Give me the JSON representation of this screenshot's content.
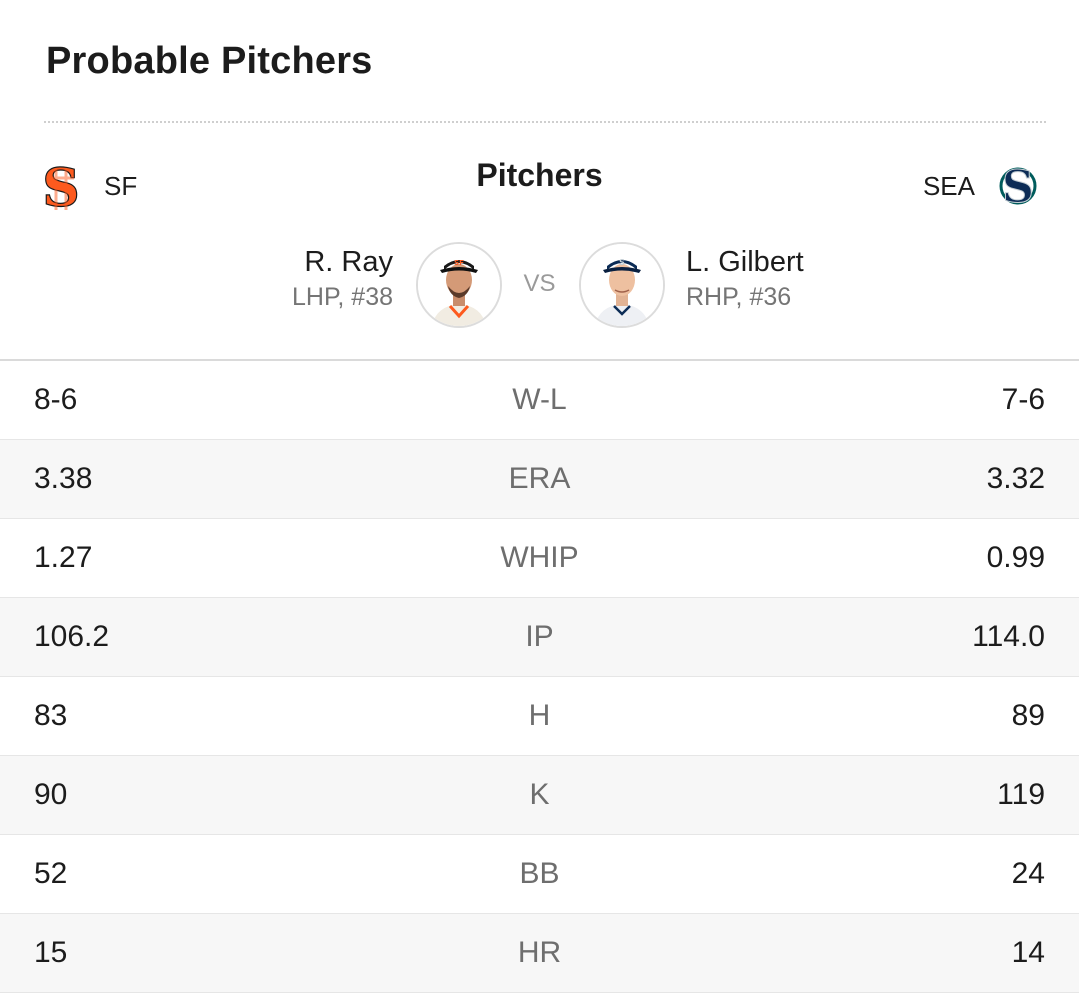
{
  "card": {
    "title": "Probable Pitchers"
  },
  "teams": {
    "left": {
      "abbr": "SF",
      "logo_icon": "sf-giants-logo",
      "color": "#FD5A1E"
    },
    "right": {
      "abbr": "SEA",
      "logo_icon": "seattle-mariners-logo",
      "color": "#005C5C"
    }
  },
  "pitchers": {
    "heading": "Pitchers",
    "vs_label": "VS",
    "left": {
      "name": "R. Ray",
      "info": "LHP, #38",
      "headshot_icon": "player-headshot"
    },
    "right": {
      "name": "L. Gilbert",
      "info": "RHP, #36",
      "headshot_icon": "player-headshot"
    }
  },
  "stats": [
    {
      "label": "W-L",
      "left": "8-6",
      "right": "7-6"
    },
    {
      "label": "ERA",
      "left": "3.38",
      "right": "3.32"
    },
    {
      "label": "WHIP",
      "left": "1.27",
      "right": "0.99"
    },
    {
      "label": "IP",
      "left": "106.2",
      "right": "114.0"
    },
    {
      "label": "H",
      "left": "83",
      "right": "89"
    },
    {
      "label": "K",
      "left": "90",
      "right": "119"
    },
    {
      "label": "BB",
      "left": "52",
      "right": "24"
    },
    {
      "label": "HR",
      "left": "15",
      "right": "14"
    }
  ]
}
